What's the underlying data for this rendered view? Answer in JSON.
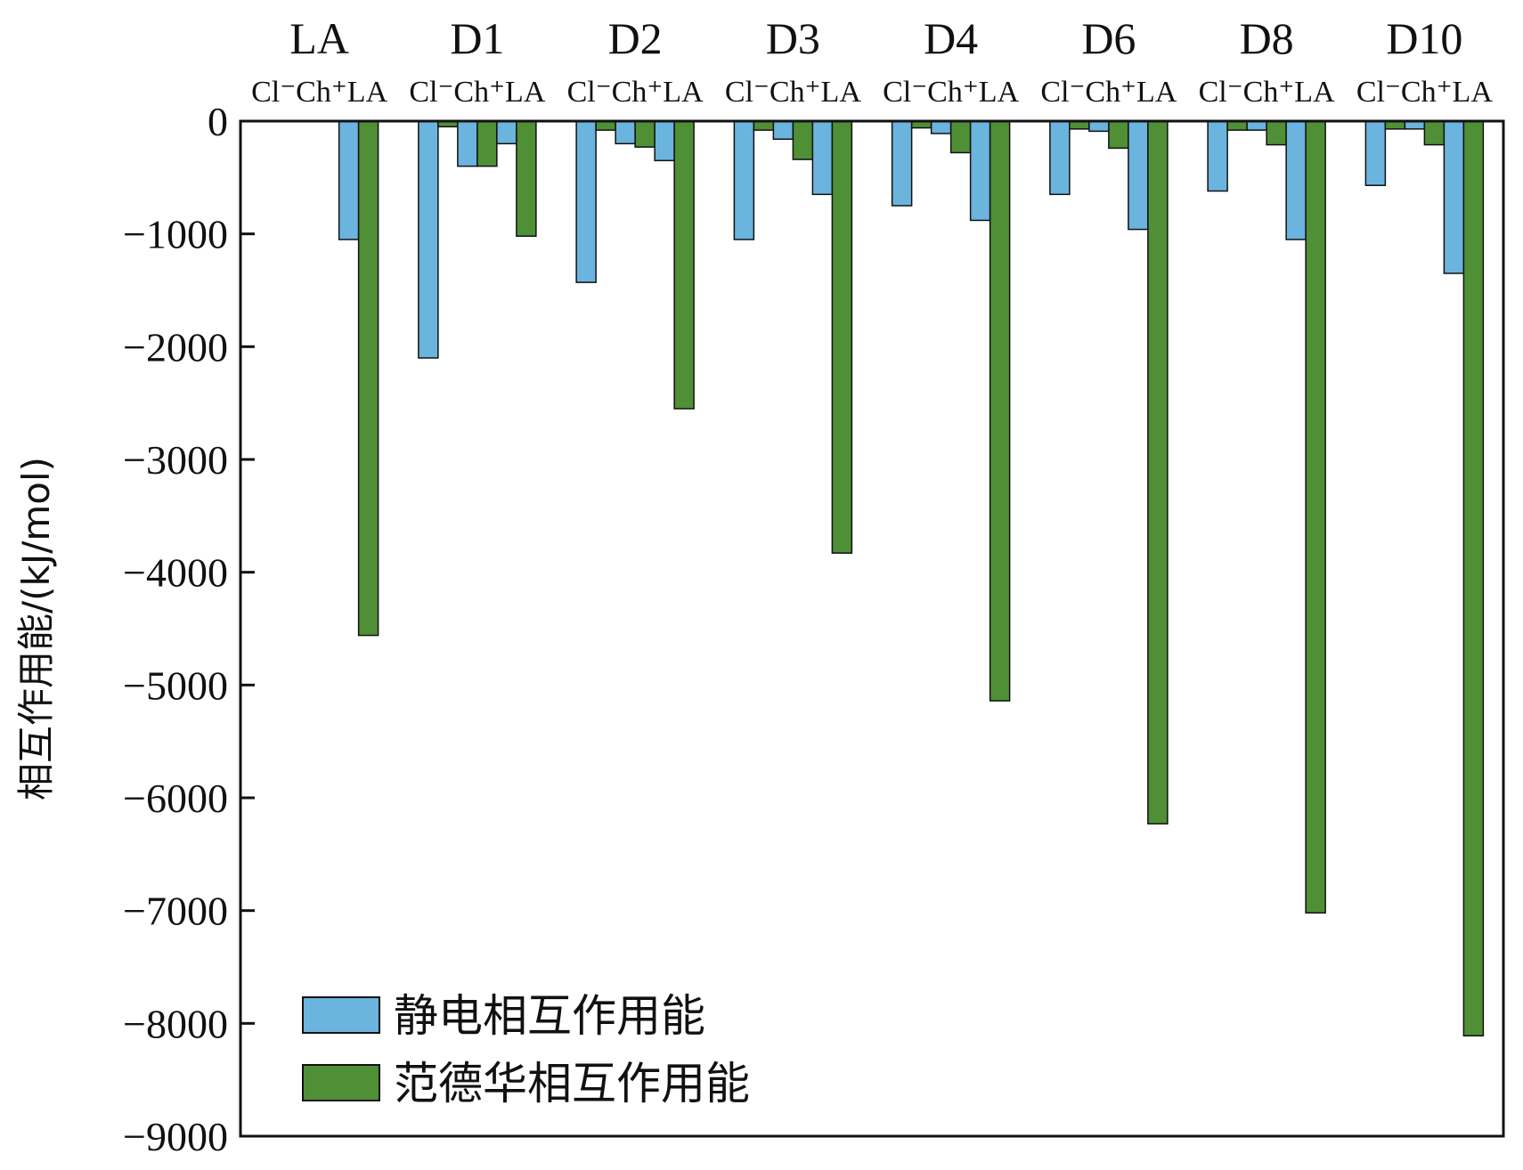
{
  "chart_data": {
    "type": "bar",
    "ylabel": "相互作用能/(kJ/mol)",
    "ylim": [
      -9000,
      0
    ],
    "yticks": [
      0,
      -1000,
      -2000,
      -3000,
      -4000,
      -5000,
      -6000,
      -7000,
      -8000,
      -9000
    ],
    "ytick_labels": [
      "0",
      "−1000",
      "−2000",
      "−3000",
      "−4000",
      "−5000",
      "−6000",
      "−7000",
      "−8000",
      "−9000"
    ],
    "legend_position": "bottom-left",
    "grid": false,
    "groups": [
      {
        "name": "LA",
        "sublabel": "Cl⁻Ch⁺LA"
      },
      {
        "name": "D1",
        "sublabel": "Cl⁻Ch⁺LA"
      },
      {
        "name": "D2",
        "sublabel": "Cl⁻Ch⁺LA"
      },
      {
        "name": "D3",
        "sublabel": "Cl⁻Ch⁺LA"
      },
      {
        "name": "D4",
        "sublabel": "Cl⁻Ch⁺LA"
      },
      {
        "name": "D6",
        "sublabel": "Cl⁻Ch⁺LA"
      },
      {
        "name": "D8",
        "sublabel": "Cl⁻Ch⁺LA"
      },
      {
        "name": "D10",
        "sublabel": "Cl⁻Ch⁺LA"
      }
    ],
    "components": [
      "Cl⁻",
      "Ch⁺",
      "LA"
    ],
    "series": [
      {
        "name": "静电相互作用能",
        "color": "#6ab4de",
        "values": [
          [
            0,
            0,
            -1050
          ],
          [
            -2100,
            -400,
            -200
          ],
          [
            -1430,
            -200,
            -350
          ],
          [
            -1050,
            -160,
            -650
          ],
          [
            -750,
            -110,
            -880
          ],
          [
            -650,
            -90,
            -960
          ],
          [
            -620,
            -80,
            -1050
          ],
          [
            -570,
            -70,
            -1350
          ]
        ]
      },
      {
        "name": "范德华相互作用能",
        "color": "#4f8f35",
        "values": [
          [
            0,
            0,
            -4560
          ],
          [
            -50,
            -400,
            -1020
          ],
          [
            -80,
            -230,
            -2550
          ],
          [
            -80,
            -340,
            -3830
          ],
          [
            -60,
            -280,
            -5140
          ],
          [
            -70,
            -240,
            -6230
          ],
          [
            -80,
            -210,
            -7020
          ],
          [
            -70,
            -210,
            -8110
          ]
        ]
      }
    ]
  }
}
